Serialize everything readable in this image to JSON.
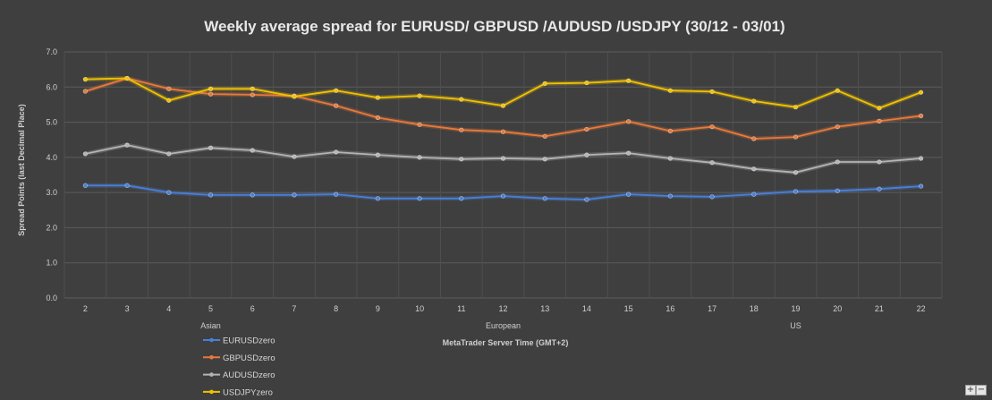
{
  "chart_data": {
    "type": "line",
    "title": "Weekly average spread for EURUSD/ GBPUSD /AUDUSD /USDJPY  (30/12 - 03/01)",
    "xlabel": "MetaTrader Server Time (GMT+2)",
    "ylabel": "Spread Points  (last Decimal Place)",
    "ylim": [
      0,
      7
    ],
    "yticks": [
      "0.0",
      "1.0",
      "2.0",
      "3.0",
      "4.0",
      "5.0",
      "6.0",
      "7.0"
    ],
    "grid": true,
    "legend_position": "bottom-left",
    "x": [
      "2",
      "3",
      "4",
      "5",
      "6",
      "7",
      "8",
      "9",
      "10",
      "11",
      "12",
      "13",
      "14",
      "15",
      "16",
      "17",
      "18",
      "19",
      "20",
      "21",
      "22"
    ],
    "sessions": [
      {
        "label": "Asian",
        "at": "5"
      },
      {
        "label": "European",
        "at": "12"
      },
      {
        "label": "US",
        "at": "19"
      }
    ],
    "series": [
      {
        "name": "EURUSDzero",
        "color": "#4a7fd6",
        "values": [
          3.2,
          3.2,
          3.0,
          2.93,
          2.93,
          2.93,
          2.95,
          2.83,
          2.83,
          2.83,
          2.9,
          2.83,
          2.8,
          2.95,
          2.9,
          2.88,
          2.95,
          3.03,
          3.05,
          3.1,
          3.18
        ]
      },
      {
        "name": "GBPUSDzero",
        "color": "#e8793a",
        "values": [
          5.88,
          6.25,
          5.95,
          5.8,
          5.78,
          5.75,
          5.47,
          5.13,
          4.93,
          4.78,
          4.73,
          4.6,
          4.8,
          5.02,
          4.75,
          4.87,
          4.53,
          4.58,
          4.87,
          5.03,
          5.18
        ]
      },
      {
        "name": "AUDUSDzero",
        "color": "#b4b4b4",
        "values": [
          4.1,
          4.35,
          4.1,
          4.27,
          4.2,
          4.02,
          4.15,
          4.07,
          4.0,
          3.95,
          3.97,
          3.95,
          4.07,
          4.12,
          3.97,
          3.85,
          3.67,
          3.57,
          3.87,
          3.87,
          3.97
        ]
      },
      {
        "name": "USDJPYzero",
        "color": "#f2c200",
        "values": [
          6.22,
          6.25,
          5.62,
          5.95,
          5.95,
          5.73,
          5.9,
          5.7,
          5.75,
          5.65,
          5.47,
          6.1,
          6.12,
          6.18,
          5.9,
          5.87,
          5.6,
          5.43,
          5.9,
          5.4,
          5.85
        ]
      }
    ]
  },
  "zoom": {
    "plus": "+",
    "minus": "−"
  }
}
